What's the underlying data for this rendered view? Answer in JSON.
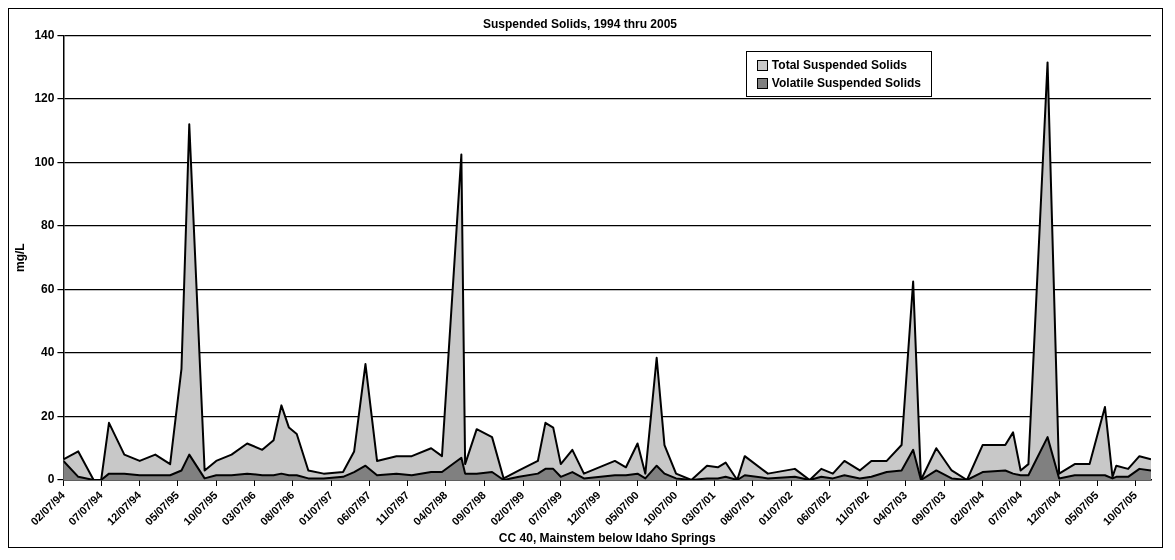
{
  "chart_data": {
    "type": "area",
    "title": "Suspended Solids, 1994 thru 2005",
    "xlabel": "CC 40, Mainstem below Idaho Springs",
    "ylabel": "mg/L",
    "x": [
      "1994-02-07",
      "1994-04-07",
      "1994-06-07",
      "1994-07-07",
      "1994-08-07",
      "1994-10-07",
      "1994-12-07",
      "1995-02-07",
      "1995-04-07",
      "1995-05-22",
      "1995-06-22",
      "1995-08-22",
      "1995-10-07",
      "1995-12-07",
      "1996-02-07",
      "1996-04-07",
      "1996-05-22",
      "1996-06-22",
      "1996-07-22",
      "1996-08-22",
      "1996-10-07",
      "1996-12-07",
      "1997-02-22",
      "1997-04-07",
      "1997-05-22",
      "1997-07-07",
      "1997-09-22",
      "1997-11-22",
      "1998-02-07",
      "1998-03-22",
      "1998-06-07",
      "1998-06-22",
      "1998-08-07",
      "1998-10-07",
      "1998-11-22",
      "1999-01-22",
      "1999-04-07",
      "1999-05-07",
      "1999-06-07",
      "1999-07-07",
      "1999-08-22",
      "1999-10-07",
      "2000-02-07",
      "2000-03-22",
      "2000-05-07",
      "2000-06-07",
      "2000-07-22",
      "2000-08-22",
      "2000-10-07",
      "2000-12-07",
      "2001-02-07",
      "2001-03-22",
      "2001-04-22",
      "2001-06-07",
      "2001-07-07",
      "2001-10-07",
      "2002-01-22",
      "2002-03-22",
      "2002-05-07",
      "2002-06-22",
      "2002-08-07",
      "2002-10-07",
      "2002-11-22",
      "2003-01-22",
      "2003-03-22",
      "2003-05-07",
      "2003-06-07",
      "2003-08-07",
      "2003-10-07",
      "2003-12-07",
      "2004-02-07",
      "2004-05-07",
      "2004-06-07",
      "2004-07-07",
      "2004-08-07",
      "2004-10-22",
      "2004-12-07",
      "2005-02-07",
      "2005-04-07",
      "2005-06-07",
      "2005-07-07",
      "2005-07-22",
      "2005-09-07",
      "2005-10-22",
      "2005-12-07"
    ],
    "series": [
      {
        "name": "Total Suspended Solids",
        "color": "#c8c8c8",
        "values": [
          6.5,
          9,
          0,
          0,
          18,
          8,
          6,
          8,
          5,
          35,
          112,
          3,
          6,
          8,
          11.5,
          9.5,
          12.5,
          23.5,
          16.5,
          14.5,
          3,
          2,
          2.5,
          9,
          36.5,
          6,
          7.5,
          7.5,
          10,
          7.5,
          102.5,
          5,
          16,
          13.5,
          0.5,
          3,
          6,
          18,
          16.5,
          5,
          9.5,
          2,
          6,
          4,
          11.5,
          2,
          38.5,
          11,
          2,
          0,
          4.5,
          4,
          5.5,
          0,
          7.5,
          2,
          3.5,
          0,
          3.5,
          2,
          6,
          3,
          6,
          6,
          11,
          62.5,
          0,
          10,
          3,
          0,
          11,
          11,
          15,
          3,
          5,
          131.5,
          2,
          5,
          5,
          23,
          1,
          4.5,
          3.5,
          7.5,
          6.5
        ]
      },
      {
        "name": "Volatile Suspended Solids",
        "color": "#808080",
        "values": [
          6,
          1,
          0,
          0,
          2,
          2,
          1.5,
          1.5,
          1.5,
          3,
          8,
          0.5,
          1.5,
          1.5,
          2,
          1.5,
          1.5,
          2,
          1.5,
          1.5,
          0.5,
          0.5,
          1,
          2.5,
          4.5,
          1.5,
          2,
          1.5,
          2.5,
          2.5,
          7,
          2,
          2,
          2.5,
          0,
          1,
          2,
          3.5,
          3.5,
          1,
          2.5,
          0.5,
          1.5,
          1.5,
          2,
          0.5,
          4.5,
          2,
          0.5,
          0,
          0.5,
          0.5,
          1,
          0,
          1.5,
          0.5,
          1,
          0,
          1,
          0.5,
          1.5,
          0.5,
          1,
          2.5,
          3,
          9.5,
          0,
          3,
          0.5,
          0,
          2.5,
          3,
          2,
          1.5,
          1.5,
          13.5,
          0.5,
          1.5,
          1.5,
          1.5,
          0.5,
          1,
          1,
          3.5,
          3
        ]
      }
    ],
    "xlim": [
      "1994-02-07",
      "2005-12-07"
    ],
    "xticks": [
      {
        "value": "1994-02-07",
        "label": "02/07/94"
      },
      {
        "value": "1994-07-07",
        "label": "07/07/94"
      },
      {
        "value": "1994-12-07",
        "label": "12/07/94"
      },
      {
        "value": "1995-05-07",
        "label": "05/07/95"
      },
      {
        "value": "1995-10-07",
        "label": "10/07/95"
      },
      {
        "value": "1996-03-07",
        "label": "03/07/96"
      },
      {
        "value": "1996-08-07",
        "label": "08/07/96"
      },
      {
        "value": "1997-01-07",
        "label": "01/07/97"
      },
      {
        "value": "1997-06-07",
        "label": "06/07/97"
      },
      {
        "value": "1997-11-07",
        "label": "11/07/97"
      },
      {
        "value": "1998-04-07",
        "label": "04/07/98"
      },
      {
        "value": "1998-09-07",
        "label": "09/07/98"
      },
      {
        "value": "1999-02-07",
        "label": "02/07/99"
      },
      {
        "value": "1999-07-07",
        "label": "07/07/99"
      },
      {
        "value": "1999-12-07",
        "label": "12/07/99"
      },
      {
        "value": "2000-05-07",
        "label": "05/07/00"
      },
      {
        "value": "2000-10-07",
        "label": "10/07/00"
      },
      {
        "value": "2001-03-07",
        "label": "03/07/01"
      },
      {
        "value": "2001-08-07",
        "label": "08/07/01"
      },
      {
        "value": "2002-01-07",
        "label": "01/07/02"
      },
      {
        "value": "2002-06-07",
        "label": "06/07/02"
      },
      {
        "value": "2002-11-07",
        "label": "11/07/02"
      },
      {
        "value": "2003-04-07",
        "label": "04/07/03"
      },
      {
        "value": "2003-09-07",
        "label": "09/07/03"
      },
      {
        "value": "2004-02-07",
        "label": "02/07/04"
      },
      {
        "value": "2004-07-07",
        "label": "07/07/04"
      },
      {
        "value": "2004-12-07",
        "label": "12/07/04"
      },
      {
        "value": "2005-05-07",
        "label": "05/07/05"
      },
      {
        "value": "2005-10-07",
        "label": "10/07/05"
      }
    ],
    "ylim": [
      0,
      140
    ],
    "yticks": [
      0,
      20,
      40,
      60,
      80,
      100,
      120,
      140
    ],
    "grid": "y",
    "legend": "top right"
  }
}
